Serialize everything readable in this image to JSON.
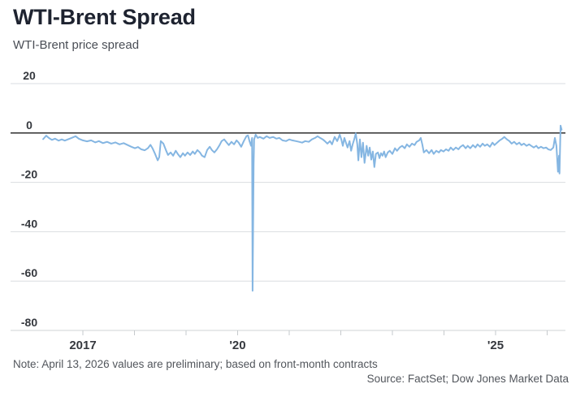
{
  "header": {
    "title": "WTI-Brent Spread",
    "subtitle": "WTI-Brent price spread"
  },
  "footer": {
    "note": "Note: April 13, 2026 values are preliminary; based on front-month contracts",
    "source": "Source: FactSet; Dow Jones Market Data"
  },
  "colors": {
    "line": "#85b6e2",
    "zero_line": "#1c1c1c",
    "gridline": "#dadde0",
    "axis_baseline": "#cfd3d6",
    "tick": "#c6cacd",
    "axis_text": "#35383e",
    "title": "#1e2330",
    "subtitle": "#4a4e56",
    "note": "#52565c"
  },
  "chart_data": {
    "type": "line",
    "title": "WTI-Brent Spread",
    "subtitle": "WTI-Brent price spread",
    "xlabel": "",
    "ylabel": "",
    "ylim": [
      -80,
      20
    ],
    "xlim": [
      2016.2,
      2026.45
    ],
    "grid": "horizontal",
    "legend": "none",
    "y_ticks": [
      {
        "value": 20,
        "label": "20"
      },
      {
        "value": 0,
        "label": "0"
      },
      {
        "value": -20,
        "label": "-20"
      },
      {
        "value": -40,
        "label": "-40"
      },
      {
        "value": -60,
        "label": "-60"
      },
      {
        "value": -80,
        "label": "-80"
      }
    ],
    "x_ticks": [
      {
        "year": 2017,
        "label": "2017"
      },
      {
        "year": 2018,
        "label": ""
      },
      {
        "year": 2019,
        "label": ""
      },
      {
        "year": 2020,
        "label": "'20"
      },
      {
        "year": 2021,
        "label": ""
      },
      {
        "year": 2022,
        "label": ""
      },
      {
        "year": 2023,
        "label": ""
      },
      {
        "year": 2024,
        "label": ""
      },
      {
        "year": 2025,
        "label": "'25"
      },
      {
        "year": 2026,
        "label": ""
      }
    ],
    "series": [
      {
        "name": "WTI-Brent price spread",
        "points": [
          [
            2016.23,
            -2.5
          ],
          [
            2016.29,
            -1.1
          ],
          [
            2016.34,
            -2.0
          ],
          [
            2016.4,
            -2.8
          ],
          [
            2016.46,
            -2.3
          ],
          [
            2016.53,
            -3.1
          ],
          [
            2016.59,
            -2.6
          ],
          [
            2016.65,
            -3.1
          ],
          [
            2016.72,
            -2.5
          ],
          [
            2016.78,
            -2.0
          ],
          [
            2016.86,
            -1.3
          ],
          [
            2016.92,
            -2.3
          ],
          [
            2017.0,
            -3.0
          ],
          [
            2017.08,
            -3.4
          ],
          [
            2017.16,
            -3.0
          ],
          [
            2017.24,
            -3.8
          ],
          [
            2017.31,
            -3.3
          ],
          [
            2017.39,
            -4.1
          ],
          [
            2017.47,
            -3.6
          ],
          [
            2017.55,
            -4.3
          ],
          [
            2017.63,
            -3.8
          ],
          [
            2017.71,
            -4.6
          ],
          [
            2017.79,
            -4.1
          ],
          [
            2017.87,
            -4.9
          ],
          [
            2017.94,
            -5.6
          ],
          [
            2018.01,
            -6.2
          ],
          [
            2018.07,
            -5.7
          ],
          [
            2018.13,
            -6.6
          ],
          [
            2018.2,
            -7.0
          ],
          [
            2018.26,
            -6.2
          ],
          [
            2018.31,
            -4.8
          ],
          [
            2018.35,
            -6.2
          ],
          [
            2018.4,
            -8.5
          ],
          [
            2018.45,
            -11.1
          ],
          [
            2018.48,
            -9.8
          ],
          [
            2018.51,
            -3.3
          ],
          [
            2018.56,
            -4.3
          ],
          [
            2018.61,
            -6.9
          ],
          [
            2018.65,
            -8.9
          ],
          [
            2018.7,
            -7.9
          ],
          [
            2018.75,
            -9.2
          ],
          [
            2018.8,
            -7.2
          ],
          [
            2018.84,
            -8.5
          ],
          [
            2018.89,
            -9.8
          ],
          [
            2018.94,
            -8.2
          ],
          [
            2018.98,
            -9.2
          ],
          [
            2019.03,
            -7.9
          ],
          [
            2019.08,
            -8.9
          ],
          [
            2019.13,
            -7.5
          ],
          [
            2019.17,
            -8.5
          ],
          [
            2019.22,
            -6.9
          ],
          [
            2019.27,
            -7.9
          ],
          [
            2019.31,
            -9.2
          ],
          [
            2019.36,
            -9.8
          ],
          [
            2019.41,
            -6.9
          ],
          [
            2019.46,
            -5.6
          ],
          [
            2019.5,
            -6.9
          ],
          [
            2019.55,
            -7.9
          ],
          [
            2019.6,
            -6.6
          ],
          [
            2019.65,
            -4.9
          ],
          [
            2019.69,
            -3.3
          ],
          [
            2019.74,
            -2.6
          ],
          [
            2019.79,
            -3.9
          ],
          [
            2019.83,
            -4.9
          ],
          [
            2019.88,
            -3.6
          ],
          [
            2019.93,
            -4.6
          ],
          [
            2019.98,
            -3.0
          ],
          [
            2020.02,
            -3.9
          ],
          [
            2020.07,
            -5.6
          ],
          [
            2020.12,
            -3.3
          ],
          [
            2020.17,
            -1.3
          ],
          [
            2020.2,
            -1.0
          ],
          [
            2020.23,
            -3.3
          ],
          [
            2020.26,
            -5.2
          ],
          [
            2020.28,
            -2.0
          ],
          [
            2020.29,
            -63.9
          ],
          [
            2020.31,
            -12.5
          ],
          [
            2020.32,
            -2.6
          ],
          [
            2020.35,
            -0.7
          ],
          [
            2020.39,
            -2.0
          ],
          [
            2020.43,
            -1.6
          ],
          [
            2020.5,
            -2.3
          ],
          [
            2020.56,
            -1.3
          ],
          [
            2020.62,
            -2.0
          ],
          [
            2020.69,
            -1.6
          ],
          [
            2020.75,
            -2.3
          ],
          [
            2020.81,
            -2.0
          ],
          [
            2020.87,
            -3.0
          ],
          [
            2020.94,
            -3.3
          ],
          [
            2021.0,
            -2.6
          ],
          [
            2021.06,
            -3.0
          ],
          [
            2021.13,
            -3.3
          ],
          [
            2021.19,
            -3.6
          ],
          [
            2021.25,
            -3.9
          ],
          [
            2021.31,
            -3.3
          ],
          [
            2021.38,
            -3.6
          ],
          [
            2021.44,
            -2.6
          ],
          [
            2021.5,
            -2.0
          ],
          [
            2021.55,
            -1.3
          ],
          [
            2021.6,
            -2.0
          ],
          [
            2021.65,
            -2.6
          ],
          [
            2021.69,
            -3.3
          ],
          [
            2021.74,
            -4.3
          ],
          [
            2021.79,
            -3.3
          ],
          [
            2021.83,
            -4.6
          ],
          [
            2021.88,
            -1.6
          ],
          [
            2021.93,
            -3.3
          ],
          [
            2021.98,
            -0.7
          ],
          [
            2022.01,
            -2.6
          ],
          [
            2022.04,
            -5.2
          ],
          [
            2022.07,
            -2.0
          ],
          [
            2022.1,
            -3.9
          ],
          [
            2022.13,
            -5.9
          ],
          [
            2022.17,
            -3.3
          ],
          [
            2022.2,
            -7.2
          ],
          [
            2022.23,
            -4.6
          ],
          [
            2022.26,
            -2.6
          ],
          [
            2022.29,
            -0.2
          ],
          [
            2022.32,
            -4.6
          ],
          [
            2022.34,
            -11.1
          ],
          [
            2022.37,
            -2.6
          ],
          [
            2022.4,
            -9.8
          ],
          [
            2022.43,
            -3.9
          ],
          [
            2022.46,
            -12.1
          ],
          [
            2022.5,
            -5.2
          ],
          [
            2022.53,
            -9.2
          ],
          [
            2022.56,
            -5.9
          ],
          [
            2022.59,
            -10.8
          ],
          [
            2022.62,
            -7.5
          ],
          [
            2022.65,
            -13.8
          ],
          [
            2022.68,
            -8.5
          ],
          [
            2022.72,
            -7.9
          ],
          [
            2022.75,
            -10.2
          ],
          [
            2022.78,
            -8.2
          ],
          [
            2022.81,
            -9.2
          ],
          [
            2022.84,
            -7.5
          ],
          [
            2022.87,
            -9.8
          ],
          [
            2022.91,
            -7.9
          ],
          [
            2022.95,
            -7.2
          ],
          [
            2023.0,
            -8.5
          ],
          [
            2023.05,
            -6.2
          ],
          [
            2023.09,
            -7.2
          ],
          [
            2023.14,
            -5.9
          ],
          [
            2023.19,
            -5.2
          ],
          [
            2023.24,
            -6.2
          ],
          [
            2023.28,
            -4.6
          ],
          [
            2023.33,
            -5.6
          ],
          [
            2023.38,
            -4.3
          ],
          [
            2023.43,
            -4.9
          ],
          [
            2023.47,
            -3.6
          ],
          [
            2023.52,
            -3.0
          ],
          [
            2023.55,
            -2.0
          ],
          [
            2023.58,
            -4.6
          ],
          [
            2023.61,
            -7.9
          ],
          [
            2023.66,
            -6.9
          ],
          [
            2023.71,
            -8.2
          ],
          [
            2023.76,
            -6.9
          ],
          [
            2023.8,
            -8.5
          ],
          [
            2023.85,
            -7.2
          ],
          [
            2023.9,
            -7.9
          ],
          [
            2023.94,
            -6.9
          ],
          [
            2023.99,
            -7.5
          ],
          [
            2024.04,
            -6.6
          ],
          [
            2024.09,
            -7.2
          ],
          [
            2024.13,
            -5.9
          ],
          [
            2024.18,
            -6.9
          ],
          [
            2024.23,
            -5.9
          ],
          [
            2024.28,
            -6.6
          ],
          [
            2024.32,
            -5.6
          ],
          [
            2024.37,
            -4.9
          ],
          [
            2024.42,
            -6.2
          ],
          [
            2024.46,
            -5.2
          ],
          [
            2024.51,
            -6.2
          ],
          [
            2024.56,
            -4.9
          ],
          [
            2024.61,
            -5.9
          ],
          [
            2024.65,
            -4.6
          ],
          [
            2024.7,
            -5.6
          ],
          [
            2024.75,
            -4.3
          ],
          [
            2024.79,
            -5.2
          ],
          [
            2024.84,
            -4.6
          ],
          [
            2024.89,
            -5.6
          ],
          [
            2024.94,
            -3.9
          ],
          [
            2024.98,
            -4.9
          ],
          [
            2025.03,
            -3.9
          ],
          [
            2025.08,
            -3.0
          ],
          [
            2025.13,
            -2.3
          ],
          [
            2025.17,
            -1.6
          ],
          [
            2025.22,
            -2.6
          ],
          [
            2025.27,
            -3.3
          ],
          [
            2025.31,
            -4.3
          ],
          [
            2025.36,
            -3.6
          ],
          [
            2025.41,
            -4.6
          ],
          [
            2025.46,
            -3.9
          ],
          [
            2025.5,
            -4.9
          ],
          [
            2025.55,
            -4.3
          ],
          [
            2025.6,
            -5.2
          ],
          [
            2025.65,
            -4.6
          ],
          [
            2025.69,
            -5.2
          ],
          [
            2025.74,
            -5.9
          ],
          [
            2025.79,
            -5.2
          ],
          [
            2025.83,
            -6.2
          ],
          [
            2025.88,
            -5.6
          ],
          [
            2025.93,
            -6.2
          ],
          [
            2025.98,
            -5.9
          ],
          [
            2026.02,
            -6.6
          ],
          [
            2026.07,
            -6.9
          ],
          [
            2026.12,
            -5.9
          ],
          [
            2026.15,
            -2.0
          ],
          [
            2026.18,
            -5.2
          ],
          [
            2026.21,
            -15.7
          ],
          [
            2026.23,
            -9.2
          ],
          [
            2026.24,
            -16.4
          ],
          [
            2026.26,
            3.0
          ],
          [
            2026.28,
            1.3
          ]
        ]
      }
    ]
  }
}
